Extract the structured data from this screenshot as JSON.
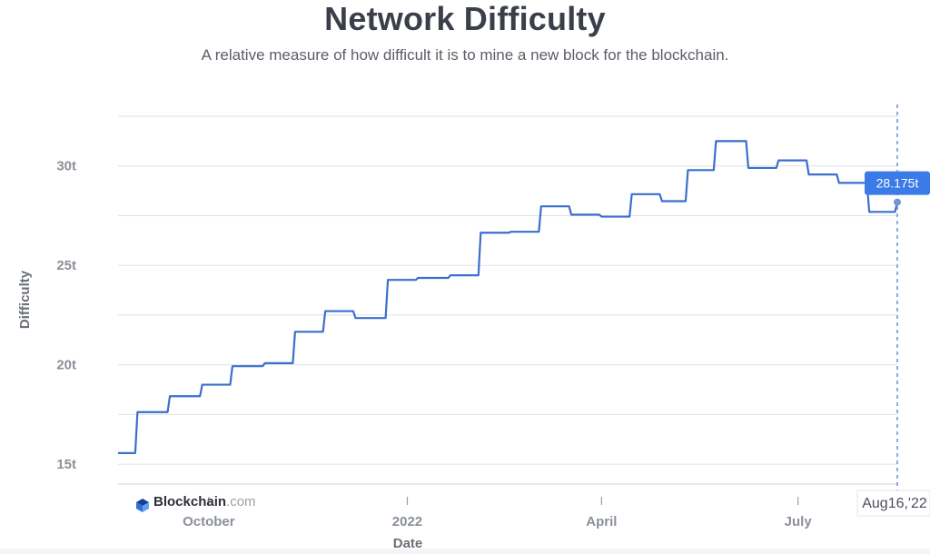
{
  "header": {
    "title": "Network Difficulty",
    "subtitle": "A relative measure of how difficult it is to mine a new block for the blockchain."
  },
  "brand": {
    "name": "Blockchain",
    "suffix": ".com"
  },
  "colors": {
    "line": "#3a6fcc",
    "accent": "#3b7be8",
    "grid": "#dfe1e5",
    "tick": "#8a8f9a"
  },
  "tooltip": {
    "value": "28.175t"
  },
  "date_flag": {
    "label": "Aug16,'22"
  },
  "chart_data": {
    "type": "line",
    "step": true,
    "title": "Network Difficulty",
    "subtitle": "A relative measure of how difficult it is to mine a new block for the blockchain.",
    "xlabel": "Date",
    "ylabel": "Difficulty",
    "x_unit": "date",
    "xlim": [
      "2021-08-20",
      "2022-08-16"
    ],
    "ylim": [
      14,
      32.5
    ],
    "yticks": [
      {
        "value": 15,
        "label": "15t"
      },
      {
        "value": 20,
        "label": "20t"
      },
      {
        "value": 25,
        "label": "25t"
      },
      {
        "value": 30,
        "label": "30t"
      }
    ],
    "xticks": [
      {
        "date": "2021-10-01",
        "label": "October"
      },
      {
        "date": "2022-01-01",
        "label": "2022"
      },
      {
        "date": "2022-04-01",
        "label": "April"
      },
      {
        "date": "2022-07-01",
        "label": "July"
      }
    ],
    "grid": true,
    "series": [
      {
        "x": [
          "2021-08-20",
          "2021-08-29",
          "2021-09-13",
          "2021-09-28",
          "2021-10-12",
          "2021-10-27",
          "2021-11-10",
          "2021-11-24",
          "2021-12-08",
          "2021-12-23",
          "2022-01-06",
          "2022-01-21",
          "2022-02-04",
          "2022-02-18",
          "2022-03-04",
          "2022-03-18",
          "2022-04-01",
          "2022-04-15",
          "2022-04-29",
          "2022-05-11",
          "2022-05-24",
          "2022-06-08",
          "2022-06-22",
          "2022-07-06",
          "2022-07-20",
          "2022-08-03",
          "2022-08-16"
        ],
        "y": [
          15.56,
          17.62,
          18.42,
          19.0,
          19.93,
          20.08,
          21.66,
          22.7,
          22.35,
          24.27,
          24.37,
          24.5,
          26.64,
          26.69,
          27.97,
          27.55,
          27.45,
          28.58,
          28.23,
          29.79,
          31.25,
          29.9,
          30.28,
          29.57,
          29.15,
          27.69,
          28.18
        ]
      }
    ],
    "last_value_label": "28.175t"
  }
}
